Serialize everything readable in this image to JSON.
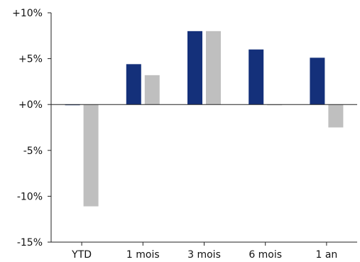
{
  "chart_data": {
    "type": "bar",
    "categories": [
      "YTD",
      "1 mois",
      "3 mois",
      "6 mois",
      "1 an"
    ],
    "series": [
      {
        "color": "#14307a",
        "values": [
          0.0,
          4.4,
          8.0,
          6.0,
          5.1
        ]
      },
      {
        "color": "#bfbfbf",
        "values": [
          -11.1,
          3.2,
          8.0,
          0.0,
          -2.5
        ]
      }
    ],
    "ylim": [
      -15,
      10
    ],
    "yticks": [
      10,
      5,
      0,
      -5,
      -10,
      -15
    ],
    "ytick_labels": [
      "+10%",
      "+5%",
      "+0%",
      "-5%",
      "-10%",
      "-15%"
    ],
    "grid": false,
    "legend": "none"
  }
}
